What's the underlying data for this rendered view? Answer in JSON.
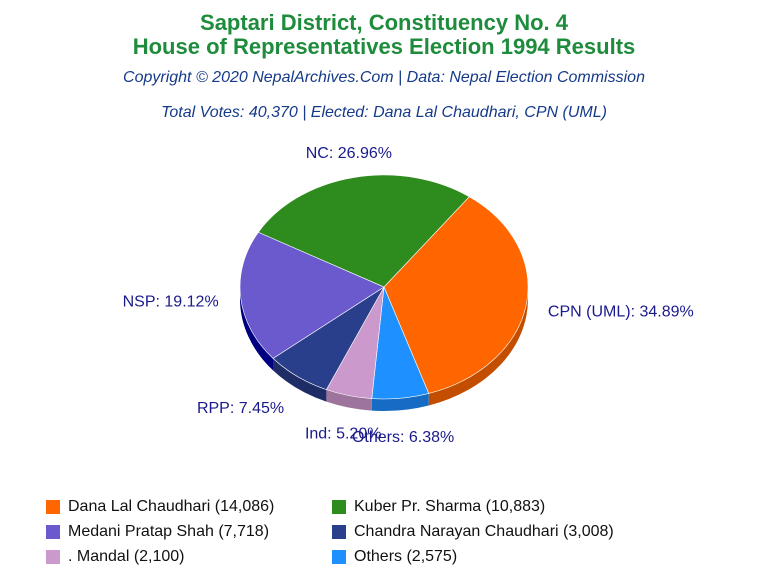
{
  "header": {
    "title_line1": "Saptari District, Constituency No. 4",
    "title_line2": "House of Representatives Election 1994 Results",
    "copyright": "Copyright © 2020 NepalArchives.Com | Data: Nepal Election Commission",
    "subtitle": "Total Votes: 40,370 | Elected: Dana Lal Chaudhari, CPN (UML)"
  },
  "chart_data": {
    "type": "pie",
    "title": "Saptari District, Constituency No. 4 House of Representatives Election 1994 Results",
    "slices": [
      {
        "label": "CPN (UML): 34.89%",
        "value": 34.89,
        "color": "#ff6600",
        "side_color": "#c44e00"
      },
      {
        "label": "Others: 6.38%",
        "value": 6.38,
        "color": "#1e90ff",
        "side_color": "#156cc2"
      },
      {
        "label": "Ind: 5.20%",
        "value": 5.2,
        "color": "#cc99cc",
        "side_color": "#9c749c"
      },
      {
        "label": "RPP: 7.45%",
        "value": 7.45,
        "color": "#2a3f8c",
        "side_color": "#1e2d66"
      },
      {
        "label": "NSP: 19.12%",
        "value": 19.12,
        "color": "#6a5acd",
        "side_color": "#000080"
      },
      {
        "label": "NC: 26.96%",
        "value": 26.96,
        "color": "#2e8b1e",
        "side_color": "#1f6414"
      }
    ],
    "legend": [
      {
        "label": "Dana Lal Chaudhari (14,086)",
        "color": "#ff6600"
      },
      {
        "label": "Kuber Pr. Sharma (10,883)",
        "color": "#2e8b1e"
      },
      {
        "label": "Medani Pratap Shah (7,718)",
        "color": "#6a5acd"
      },
      {
        "label": "Chandra Narayan Chaudhari (3,008)",
        "color": "#2a3f8c"
      },
      {
        "label": ". Mandal (2,100)",
        "color": "#cc99cc"
      },
      {
        "label": "Others (2,575)",
        "color": "#1e90ff"
      }
    ]
  }
}
